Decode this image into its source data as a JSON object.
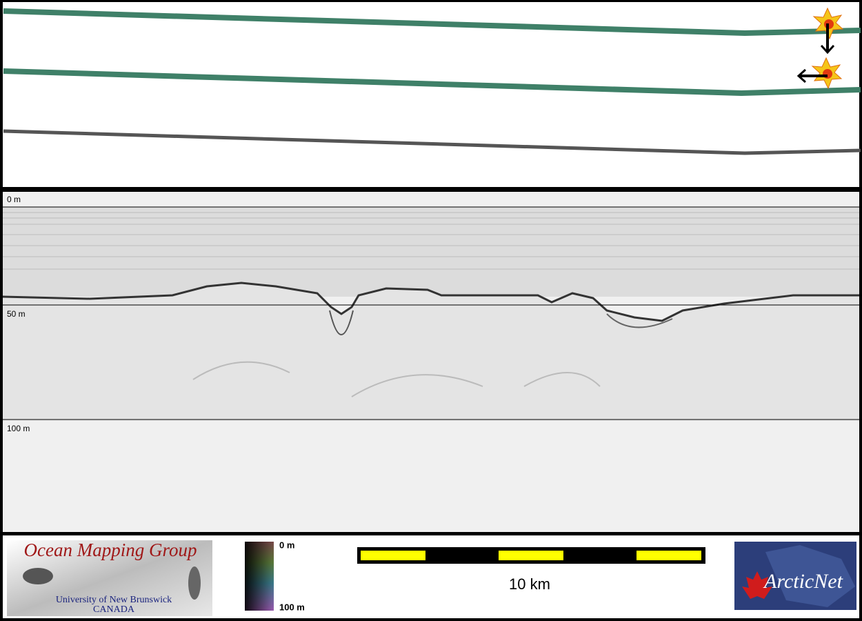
{
  "depth_labels": [
    "0 m",
    "50 m",
    "100 m"
  ],
  "color_scale": {
    "top": "0 m",
    "bottom": "100 m"
  },
  "scale_bar": {
    "label": "10 km"
  },
  "logo_left": {
    "title": "Ocean Mapping Group",
    "line1": "University of New Brunswick",
    "line2": "CANADA"
  },
  "logo_right": {
    "title": "ArcticNet"
  }
}
